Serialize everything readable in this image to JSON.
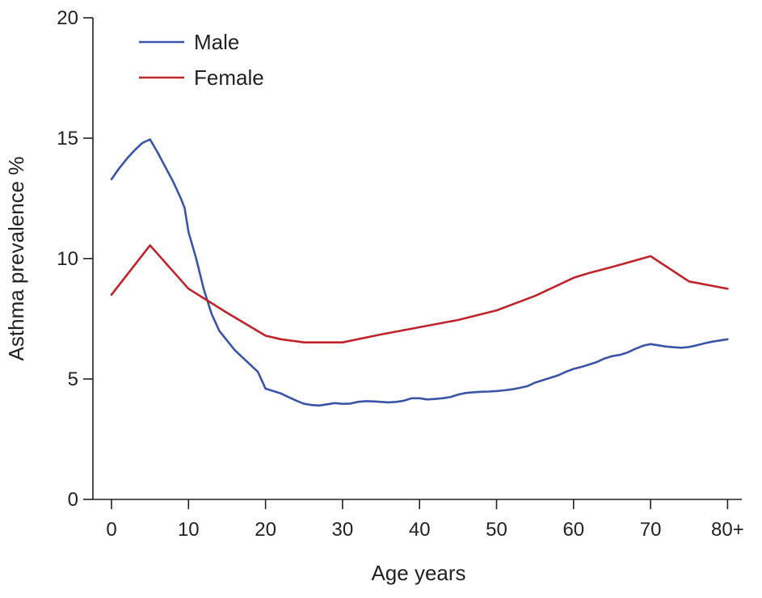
{
  "chart_data": {
    "type": "line",
    "title": "",
    "xlabel": "Age years",
    "ylabel": "Asthma prevalence %",
    "xlim": [
      -2,
      82
    ],
    "ylim": [
      0,
      20
    ],
    "x_ticks": [
      {
        "value": 0,
        "label": "0"
      },
      {
        "value": 10,
        "label": "10"
      },
      {
        "value": 20,
        "label": "20"
      },
      {
        "value": 30,
        "label": "30"
      },
      {
        "value": 40,
        "label": "40"
      },
      {
        "value": 50,
        "label": "50"
      },
      {
        "value": 60,
        "label": "60"
      },
      {
        "value": 70,
        "label": "70"
      },
      {
        "value": 80,
        "label": "80+"
      }
    ],
    "y_ticks": [
      {
        "value": 0,
        "label": "0"
      },
      {
        "value": 5,
        "label": "5"
      },
      {
        "value": 10,
        "label": "10"
      },
      {
        "value": 15,
        "label": "15"
      },
      {
        "value": 20,
        "label": "20"
      }
    ],
    "grid": false,
    "legend_position": "top-left",
    "series": [
      {
        "name": "Male",
        "color": "#3a55a8",
        "points": [
          [
            0,
            13.3
          ],
          [
            1,
            13.75
          ],
          [
            2,
            14.15
          ],
          [
            3,
            14.5
          ],
          [
            4,
            14.8
          ],
          [
            5,
            14.95
          ],
          [
            6,
            14.4
          ],
          [
            7,
            13.8
          ],
          [
            8,
            13.2
          ],
          [
            9,
            12.5
          ],
          [
            9.5,
            12.1
          ],
          [
            10,
            11.1
          ],
          [
            11,
            10.0
          ],
          [
            12,
            8.7
          ],
          [
            13,
            7.7
          ],
          [
            14,
            7.0
          ],
          [
            15,
            6.6
          ],
          [
            16,
            6.2
          ],
          [
            17,
            5.9
          ],
          [
            18,
            5.6
          ],
          [
            19,
            5.3
          ],
          [
            20,
            4.6
          ],
          [
            21,
            4.5
          ],
          [
            22,
            4.4
          ],
          [
            23,
            4.25
          ],
          [
            24,
            4.1
          ],
          [
            25,
            3.97
          ],
          [
            26,
            3.92
          ],
          [
            27,
            3.9
          ],
          [
            28,
            3.95
          ],
          [
            29,
            4.0
          ],
          [
            30,
            3.97
          ],
          [
            31,
            3.98
          ],
          [
            32,
            4.05
          ],
          [
            33,
            4.08
          ],
          [
            34,
            4.07
          ],
          [
            35,
            4.05
          ],
          [
            36,
            4.03
          ],
          [
            37,
            4.05
          ],
          [
            38,
            4.1
          ],
          [
            39,
            4.2
          ],
          [
            40,
            4.2
          ],
          [
            41,
            4.15
          ],
          [
            42,
            4.17
          ],
          [
            43,
            4.2
          ],
          [
            44,
            4.25
          ],
          [
            45,
            4.35
          ],
          [
            46,
            4.42
          ],
          [
            47,
            4.45
          ],
          [
            48,
            4.47
          ],
          [
            49,
            4.48
          ],
          [
            50,
            4.5
          ],
          [
            51,
            4.53
          ],
          [
            52,
            4.57
          ],
          [
            53,
            4.63
          ],
          [
            54,
            4.7
          ],
          [
            55,
            4.85
          ],
          [
            56,
            4.95
          ],
          [
            57,
            5.05
          ],
          [
            58,
            5.15
          ],
          [
            59,
            5.3
          ],
          [
            60,
            5.42
          ],
          [
            61,
            5.5
          ],
          [
            62,
            5.6
          ],
          [
            63,
            5.7
          ],
          [
            64,
            5.85
          ],
          [
            65,
            5.95
          ],
          [
            66,
            6.0
          ],
          [
            67,
            6.1
          ],
          [
            68,
            6.25
          ],
          [
            69,
            6.38
          ],
          [
            70,
            6.45
          ],
          [
            71,
            6.4
          ],
          [
            72,
            6.35
          ],
          [
            73,
            6.32
          ],
          [
            74,
            6.3
          ],
          [
            75,
            6.33
          ],
          [
            76,
            6.4
          ],
          [
            77,
            6.48
          ],
          [
            78,
            6.55
          ],
          [
            79,
            6.6
          ],
          [
            80,
            6.65
          ]
        ]
      },
      {
        "name": "Female",
        "color": "#c0242b",
        "points": [
          [
            0,
            8.5
          ],
          [
            5,
            10.55
          ],
          [
            10,
            8.75
          ],
          [
            15,
            7.75
          ],
          [
            20,
            6.8
          ],
          [
            22,
            6.65
          ],
          [
            25,
            6.52
          ],
          [
            30,
            6.52
          ],
          [
            35,
            6.85
          ],
          [
            40,
            7.15
          ],
          [
            45,
            7.45
          ],
          [
            50,
            7.85
          ],
          [
            55,
            8.45
          ],
          [
            58,
            8.9
          ],
          [
            60,
            9.2
          ],
          [
            62,
            9.4
          ],
          [
            65,
            9.65
          ],
          [
            70,
            10.1
          ],
          [
            75,
            9.05
          ],
          [
            80,
            8.75
          ]
        ]
      }
    ]
  }
}
